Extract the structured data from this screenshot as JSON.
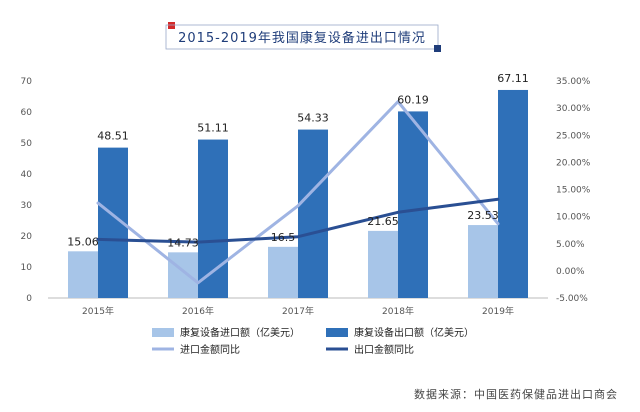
{
  "chart_data": {
    "type": "bar",
    "title": "2015-2019年我国康复设备进出口情况",
    "source": "数据来源：中国医药保健品进出口商会",
    "categories": [
      "2015年",
      "2016年",
      "2017年",
      "2018年",
      "2019年"
    ],
    "series": [
      {
        "name": "康复设备进口额（亿美元）",
        "type": "bar",
        "axis": "left",
        "color": "#a7c5e8",
        "values": [
          15.06,
          14.73,
          16.5,
          21.65,
          23.53
        ]
      },
      {
        "name": "康复设备出口额（亿美元）",
        "type": "bar",
        "axis": "left",
        "color": "#2f70b8",
        "values": [
          48.51,
          51.11,
          54.33,
          60.19,
          67.11
        ]
      },
      {
        "name": "进口金额同比",
        "type": "line",
        "axis": "right",
        "color": "#9fb4e3",
        "values": [
          12.5,
          -2.2,
          12.0,
          31.2,
          8.7
        ]
      },
      {
        "name": "出口金额同比",
        "type": "line",
        "axis": "right",
        "color": "#2a4f93",
        "values": [
          5.8,
          5.3,
          6.3,
          10.8,
          13.2
        ]
      }
    ],
    "y_left": {
      "min": 0,
      "max": 70,
      "ticks": [
        0,
        10,
        20,
        30,
        40,
        50,
        60,
        70
      ],
      "tick_labels": [
        "0",
        "10",
        "20",
        "30",
        "40",
        "50",
        "60",
        "70"
      ]
    },
    "y_right": {
      "min": -5,
      "max": 35,
      "ticks": [
        -5,
        0,
        5,
        10,
        15,
        20,
        25,
        30,
        35
      ],
      "tick_labels": [
        "-5.00%",
        "0.00%",
        "5.00%",
        "10.00%",
        "15.00%",
        "20.00%",
        "25.00%",
        "30.00%",
        "35.00%"
      ]
    },
    "grid": false,
    "legend_position": "bottom-left"
  }
}
